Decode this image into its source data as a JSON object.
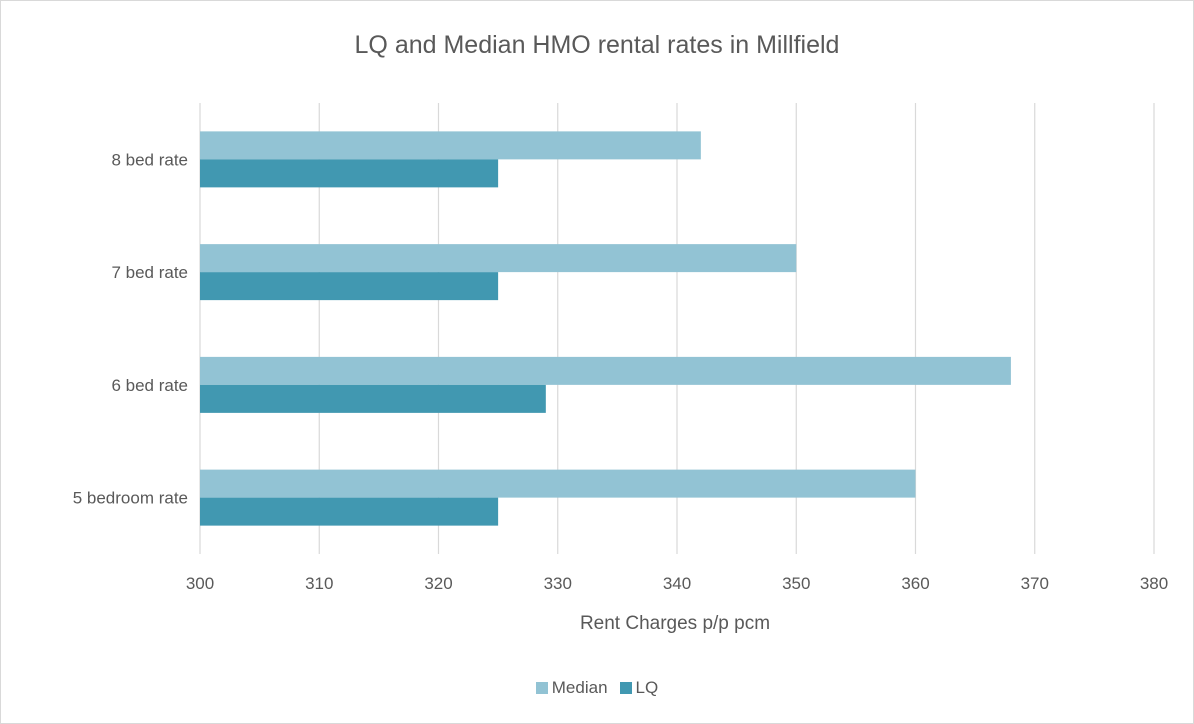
{
  "chart_data": {
    "type": "bar",
    "orientation": "horizontal",
    "title": "LQ and Median HMO rental rates in Millfield",
    "xlabel": "Rent Charges p/p pcm",
    "ylabel": "",
    "categories": [
      "5 bedroom rate",
      "6 bed rate",
      "7 bed rate",
      "8 bed rate"
    ],
    "series": [
      {
        "name": "Median",
        "color": "#92c3d4",
        "values": [
          360,
          368,
          350,
          342
        ]
      },
      {
        "name": "LQ",
        "color": "#4198b1",
        "values": [
          325,
          329,
          325,
          325
        ]
      }
    ],
    "xlim": [
      300,
      380
    ],
    "xticks": [
      "300",
      "310",
      "320",
      "330",
      "340",
      "350",
      "360",
      "370",
      "380"
    ],
    "grid": true,
    "legend_position": "bottom"
  }
}
